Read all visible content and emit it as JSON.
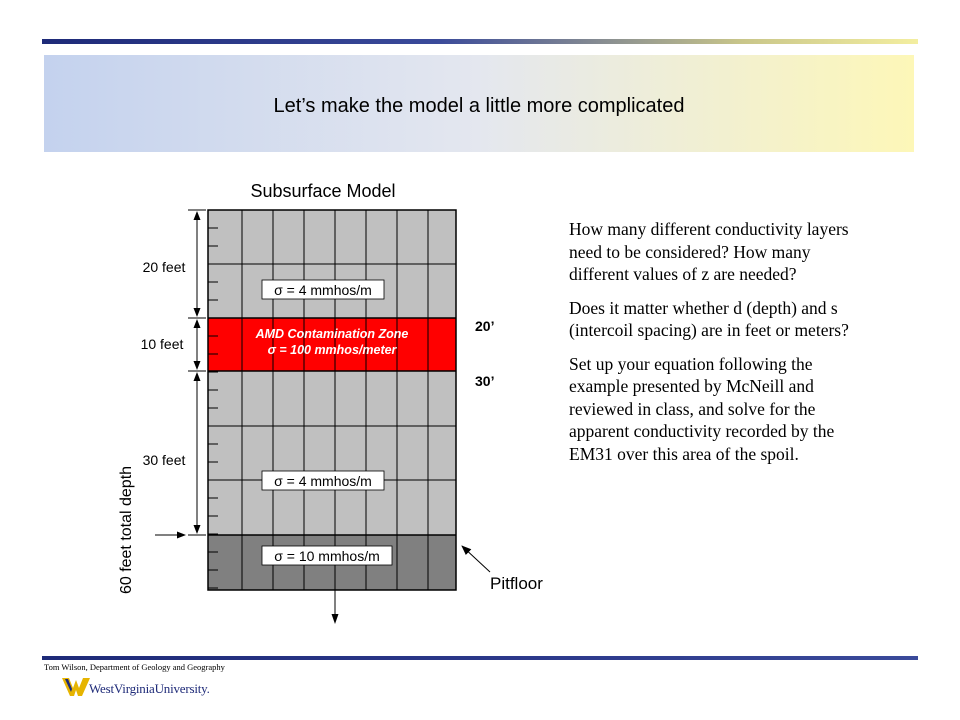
{
  "slide": {
    "title": "Let’s make the model a little more complicated"
  },
  "diagram": {
    "heading": "Subsurface Model",
    "thickness_labels": [
      "20 feet",
      "10 feet",
      "30 feet"
    ],
    "total_depth_label": "60 feet total depth",
    "layers": [
      {
        "sigma_label": "σ = 4 mmhos/m",
        "color": "#c0c0c0",
        "thickness_ft": 20
      },
      {
        "zone_label": "AMD Contamination Zone",
        "sigma_label": "σ = 100 mmhos/meter",
        "color": "#ff0000",
        "thickness_ft": 10
      },
      {
        "sigma_label": "σ = 4 mmhos/m",
        "color": "#c0c0c0",
        "thickness_ft": 30
      },
      {
        "sigma_label": "σ = 10 mmhos/m",
        "color": "#808080"
      }
    ],
    "depth_markers": [
      "20’",
      "30’"
    ],
    "pitfloor_label": "Pitfloor"
  },
  "questions": [
    "How many different conductivity layers need to be considered? How many different values of z are needed?",
    "Does it matter whether d (depth) and s (intercoil spacing) are in feet or meters?",
    "Set up your equation following the example presented by McNeill and reviewed in class, and solve for the apparent conductivity recorded by the EM31 over this area of the spoil."
  ],
  "footer": {
    "credit": "Tom Wilson, Department of Geology and Geography",
    "university": "WestVirginiaUniversity."
  }
}
